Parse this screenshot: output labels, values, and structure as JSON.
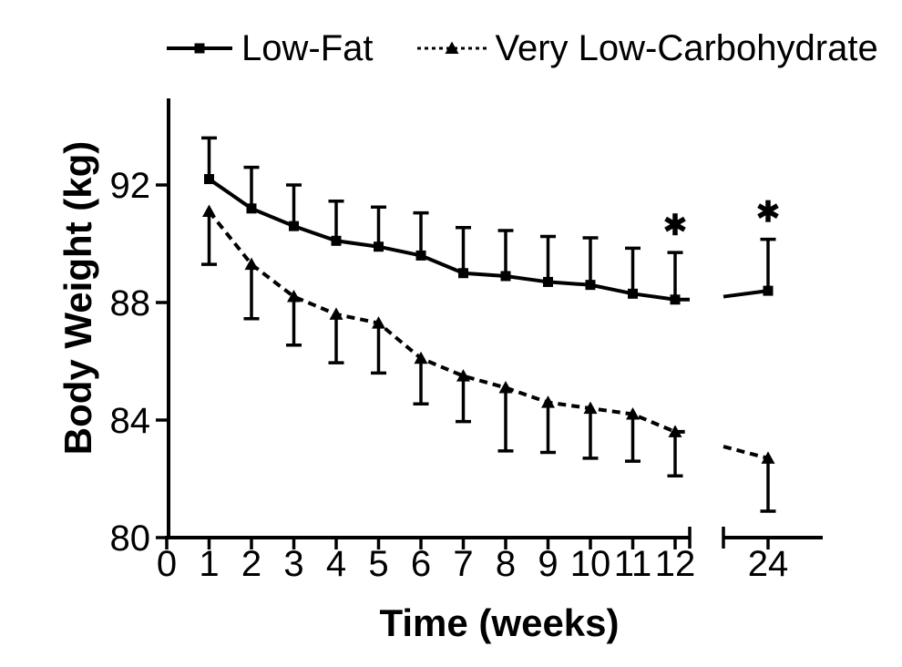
{
  "figure": {
    "background": "#ffffff",
    "ink_color": "#000000"
  },
  "chart_data": {
    "type": "line",
    "title": "",
    "xlabel": "Time (weeks)",
    "ylabel": "Body Weight (kg)",
    "x_ticks": [
      0,
      1,
      2,
      3,
      4,
      5,
      6,
      7,
      8,
      9,
      10,
      11,
      12,
      24
    ],
    "x_axis_break_between": [
      12,
      24
    ],
    "y_ticks": [
      80,
      84,
      88,
      92
    ],
    "ylim": [
      80,
      95
    ],
    "grid": false,
    "legend_position": "top",
    "series": [
      {
        "name": "Low-Fat",
        "marker": "filled-square",
        "line_style": "solid",
        "error_bar_direction": "up",
        "x": [
          1,
          2,
          3,
          4,
          5,
          6,
          7,
          8,
          9,
          10,
          11,
          12,
          24
        ],
        "y": [
          92.2,
          91.2,
          90.6,
          90.1,
          89.9,
          89.6,
          89.0,
          88.9,
          88.7,
          88.6,
          88.3,
          88.1,
          88.4
        ],
        "error": [
          1.4,
          1.4,
          1.4,
          1.35,
          1.35,
          1.45,
          1.55,
          1.55,
          1.55,
          1.6,
          1.55,
          1.6,
          1.75
        ]
      },
      {
        "name": "Very Low-Carbohydrate",
        "marker": "filled-triangle-up",
        "line_style": "dashed",
        "error_bar_direction": "down",
        "x": [
          1,
          2,
          3,
          4,
          5,
          6,
          7,
          8,
          9,
          10,
          11,
          12,
          24
        ],
        "y": [
          91.1,
          89.3,
          88.2,
          87.6,
          87.3,
          86.1,
          85.5,
          85.1,
          84.6,
          84.4,
          84.2,
          83.6,
          82.7
        ],
        "error": [
          1.8,
          1.85,
          1.65,
          1.65,
          1.7,
          1.55,
          1.55,
          2.15,
          1.7,
          1.7,
          1.6,
          1.5,
          1.8
        ]
      }
    ],
    "annotations": [
      {
        "symbol": "*",
        "x": 12,
        "attached_to": "Low-Fat"
      },
      {
        "symbol": "*",
        "x": 24,
        "attached_to": "Low-Fat"
      }
    ]
  }
}
